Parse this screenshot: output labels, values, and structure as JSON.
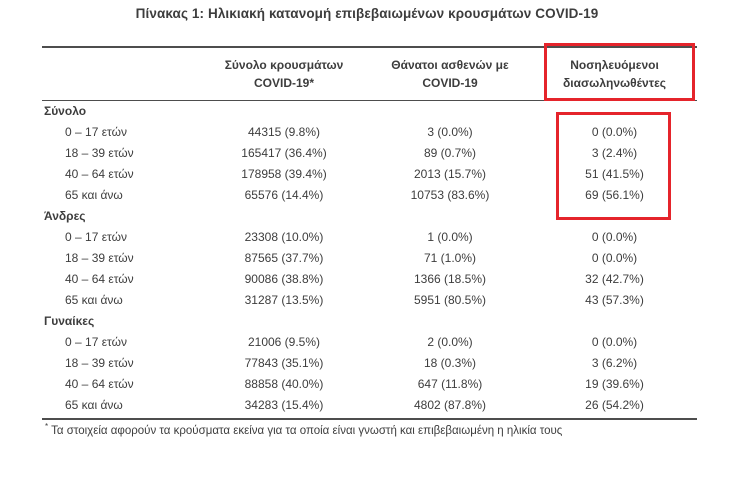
{
  "page": {
    "title": "Πίνακας 1: Ηλικιακή κατανομή επιβεβαιωμένων κρουσμάτων COVID-19",
    "footnote_marker": "*",
    "footnote_text": "Τα στοιχεία αφορούν τα κρούσματα εκείνα για τα οποία είναι γνωστή και επιβεβαιωμένη η ηλικία τους"
  },
  "table": {
    "columns": [
      {
        "line1": "Σύνολο κρουσμάτων",
        "line2": "COVID-19*"
      },
      {
        "line1": "Θάνατοι ασθενών με",
        "line2": "COVID-19"
      },
      {
        "line1": "Νοσηλευόμενοι",
        "line2": "διασωληνωθέντες"
      }
    ],
    "sections": [
      {
        "label": "Σύνολο",
        "rows": [
          {
            "age": "0 – 17 ετών",
            "cases": "44315 (9.8%)",
            "deaths": "3 (0.0%)",
            "intubated": "0 (0.0%)"
          },
          {
            "age": "18 – 39 ετών",
            "cases": "165417 (36.4%)",
            "deaths": "89 (0.7%)",
            "intubated": "3 (2.4%)"
          },
          {
            "age": "40 – 64 ετών",
            "cases": "178958 (39.4%)",
            "deaths": "2013 (15.7%)",
            "intubated": "51 (41.5%)"
          },
          {
            "age": "65 και άνω",
            "cases": "65576 (14.4%)",
            "deaths": "10753 (83.6%)",
            "intubated": "69 (56.1%)"
          }
        ]
      },
      {
        "label": "Άνδρες",
        "rows": [
          {
            "age": "0 – 17 ετών",
            "cases": "23308 (10.0%)",
            "deaths": "1 (0.0%)",
            "intubated": "0 (0.0%)"
          },
          {
            "age": "18 – 39 ετών",
            "cases": "87565 (37.7%)",
            "deaths": "71 (1.0%)",
            "intubated": "0 (0.0%)"
          },
          {
            "age": "40 – 64 ετών",
            "cases": "90086 (38.8%)",
            "deaths": "1366 (18.5%)",
            "intubated": "32 (42.7%)"
          },
          {
            "age": "65 και άνω",
            "cases": "31287 (13.5%)",
            "deaths": "5951 (80.5%)",
            "intubated": "43 (57.3%)"
          }
        ]
      },
      {
        "label": "Γυναίκες",
        "rows": [
          {
            "age": "0 – 17 ετών",
            "cases": "21006 (9.5%)",
            "deaths": "2 (0.0%)",
            "intubated": "0 (0.0%)"
          },
          {
            "age": "18 – 39 ετών",
            "cases": "77843 (35.1%)",
            "deaths": "18 (0.3%)",
            "intubated": "3 (6.2%)"
          },
          {
            "age": "40 – 64 ετών",
            "cases": "88858 (40.0%)",
            "deaths": "647 (11.8%)",
            "intubated": "19 (39.6%)"
          },
          {
            "age": "65 και άνω",
            "cases": "34283 (15.4%)",
            "deaths": "4802 (87.8%)",
            "intubated": "26 (54.2%)"
          }
        ]
      }
    ]
  },
  "annotations": {
    "highlight_color": "#e5242b",
    "highlighted_column": "Νοσηλευόμενοι διασωληνωθέντες",
    "highlighted_values": [
      "0 (0.0%)",
      "3 (2.4%)",
      "51 (41.5%)",
      "69 (56.1%)"
    ]
  }
}
